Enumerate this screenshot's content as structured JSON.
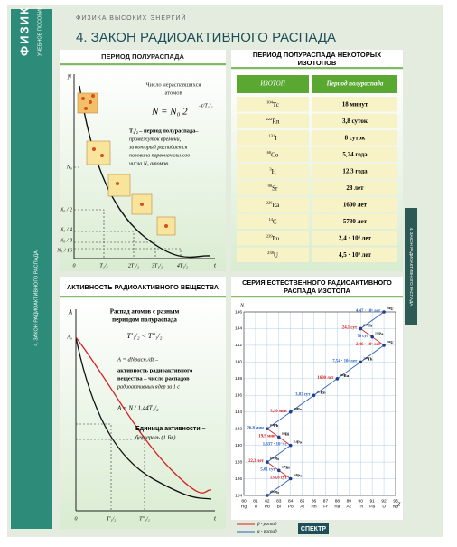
{
  "header": {
    "subject": "ФИЗИКА",
    "subtitle": "УЧЕБНОЕ ПОСОБИЕ",
    "series": "ФИЗИКА ВЫСОКИХ ЭНЕРГИЙ",
    "title": "4. ЗАКОН РАДИОАКТИВНОГО РАСПАДА",
    "side_label": "4. ЗАКОН РАДИОАКТИВНОГО РАСПАДА"
  },
  "half_life": {
    "title": "ПЕРИОД ПОЛУРАСПАДА",
    "caption": [
      "Число нераспавшихся",
      "атомов"
    ],
    "formula": "N = N₀ 2",
    "formula_exp": "–t/T₁/₂",
    "description": [
      "T₁/₂ – период полураспада–",
      "промежуток времени,",
      "за который распадается",
      "половина первоначального",
      "числа N₀ атомов."
    ],
    "y_axis": "N",
    "y_labels": [
      "N₀",
      "N₀ / 2",
      "N₀ / 4",
      "N₀ / 8",
      "N₀ / 16"
    ],
    "x_axis": "t",
    "x_labels": [
      "0",
      "T₁/₂",
      "2T₁/₂",
      "3T₁/₂",
      "4T₁/₂"
    ]
  },
  "table": {
    "title": [
      "ПЕРИОД ПОЛУРАСПАДА НЕКОТОРЫХ",
      "ИЗОТОПОВ"
    ],
    "columns": [
      "ИЗОТОП",
      "Период полураспада"
    ],
    "rows": [
      {
        "mass": "104",
        "symbol": "Tc",
        "period": "18 минут"
      },
      {
        "mass": "222",
        "symbol": "Rn",
        "period": "3,8 суток"
      },
      {
        "mass": "131",
        "symbol": "I",
        "period": "8 суток"
      },
      {
        "mass": "60",
        "symbol": "Co",
        "period": "5,24 года"
      },
      {
        "mass": "3",
        "symbol": "H",
        "period": "12,3 года"
      },
      {
        "mass": "90",
        "symbol": "Sr",
        "period": "28 лет"
      },
      {
        "mass": "226",
        "symbol": "Ra",
        "period": "1600 лет"
      },
      {
        "mass": "14",
        "symbol": "C",
        "period": "5730 лет"
      },
      {
        "mass": "239",
        "symbol": "Pu",
        "period": "2,4 · 10⁴ лет"
      },
      {
        "mass": "238",
        "symbol": "U",
        "period": "4,5 · 10⁹ лет"
      }
    ]
  },
  "activity": {
    "title": "АКТИВНОСТЬ РАДИОАКТИВНОГО ВЕЩЕСТВА",
    "caption": [
      "Распад атомов с разным",
      "периодом полураспада"
    ],
    "inequality": "T′₁/₂ < T″₁/₂",
    "definition": [
      "A = dNрасп./dt –",
      "активность радиоактивного",
      "вещества – число распадов",
      "радиоактивных ядер за 1 с"
    ],
    "formula": "A = N / 1,44T₁/₂",
    "unit": [
      "Единица активности –",
      "беккерель (1 Бк)"
    ],
    "y_axis": "A",
    "y_label": "A₀",
    "x_axis": "t",
    "x_labels": [
      "0",
      "T′₁/₂",
      "T″₁/₂"
    ]
  },
  "decay_chart": {
    "type": "scatter",
    "title": [
      "СЕРИЯ ЕСТЕСТВЕННОГО РАДИОАКТИВНОГО",
      "РАСПАДА ИЗОТОПА"
    ],
    "y_axis": "N",
    "x_axis": "Z",
    "xlim": [
      80,
      93
    ],
    "xticks": [
      80,
      81,
      82,
      83,
      84,
      85,
      86,
      87,
      88,
      89,
      90,
      91,
      92,
      93
    ],
    "elements": [
      "Hg",
      "Tl",
      "Pb",
      "Bi",
      "Po",
      "At",
      "Rn",
      "Fr",
      "Ra",
      "Ac",
      "Th",
      "Pa",
      "U",
      "Np"
    ],
    "ylim": [
      124,
      146
    ],
    "yticks": [
      124,
      126,
      128,
      130,
      132,
      134,
      136,
      138,
      140,
      142,
      144,
      146
    ],
    "grid": true,
    "nodes": [
      {
        "label": "²³⁸U",
        "z": 92,
        "n": 146,
        "half_life": "4,47 · 10⁹ лет"
      },
      {
        "label": "²³⁴Th",
        "z": 90,
        "n": 144,
        "half_life": "24,1 сут"
      },
      {
        "label": "²³⁴Pa",
        "z": 91,
        "n": 143,
        "half_life": "70 сут"
      },
      {
        "label": "²³⁴U",
        "z": 92,
        "n": 142,
        "half_life": "2,46 · 10⁵ лет"
      },
      {
        "label": "²³⁰Th",
        "z": 90,
        "n": 140,
        "half_life": "7,54 · 10⁴ лет"
      },
      {
        "label": "²²⁶Ra",
        "z": 88,
        "n": 138,
        "half_life": "1600 лет"
      },
      {
        "label": "²²²Rn",
        "z": 86,
        "n": 136,
        "half_life": "3,82 сут"
      },
      {
        "label": "²¹⁸Po",
        "z": 84,
        "n": 134,
        "half_life": "3,10 мин"
      },
      {
        "label": "²¹⁴Pb",
        "z": 82,
        "n": 132,
        "half_life": "26,8 мин"
      },
      {
        "label": "²¹⁴Bi",
        "z": 83,
        "n": 131,
        "half_life": "19,9 мин"
      },
      {
        "label": "²¹⁴Po",
        "z": 84,
        "n": 130,
        "half_life": "1,637 · 10⁻⁴ с"
      },
      {
        "label": "²¹⁰Pb",
        "z": 82,
        "n": 128,
        "half_life": "22,3 лет"
      },
      {
        "label": "²¹⁰Bi",
        "z": 83,
        "n": 127,
        "half_life": "5,01 сут"
      },
      {
        "label": "²¹⁰Po",
        "z": 84,
        "n": 126,
        "half_life": "138,8 сут"
      },
      {
        "label": "²⁰⁶Pb",
        "z": 82,
        "n": 124,
        "half_life": null
      }
    ],
    "legend": [
      "β - распад",
      "α - распад"
    ],
    "beta_color": "#d62020",
    "alpha_color": "#2a5fc0"
  },
  "footer": {
    "publisher": "СПЕКТР"
  }
}
